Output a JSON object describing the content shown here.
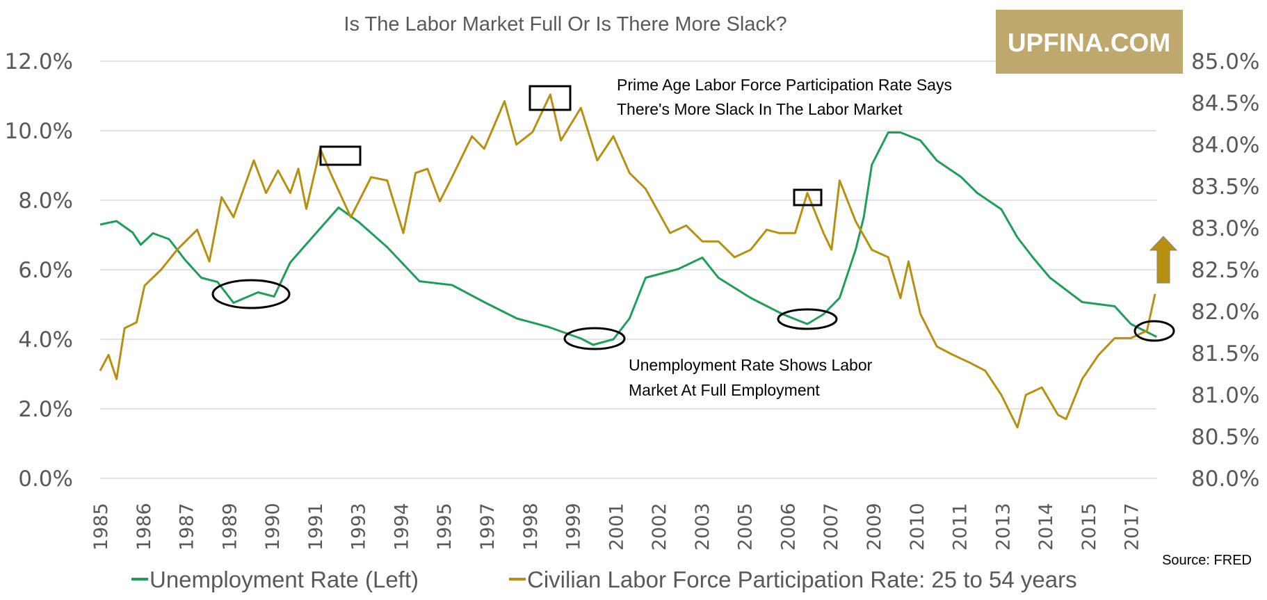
{
  "title": "Is The Labor Market Full Or Is There More Slack?",
  "logo": "UPFINA.COM",
  "source": "Source: FRED",
  "colors": {
    "unemployment": "#1f9e58",
    "participation": "#b8900f",
    "logo_bg": "#bfa86e",
    "grid": "#d9d9d9",
    "arrow": "#b8900f"
  },
  "annotations": {
    "participation_line1": "Prime Age Labor Force Participation Rate Says",
    "participation_line2": "There's More Slack In The Labor Market",
    "unemployment_line1": "Unemployment Rate Shows Labor",
    "unemployment_line2": "Market At Full Employment",
    "arrow_icon": "up-arrow"
  },
  "chart_data": {
    "type": "line",
    "title": "Is The Labor Market Full Or Is There More Slack?",
    "xlabel": "",
    "ylabel": "",
    "y2label": "",
    "x_tick_labels": [
      "1985",
      "1986",
      "1987",
      "1989",
      "1990",
      "1991",
      "1993",
      "1994",
      "1995",
      "1997",
      "1998",
      "1999",
      "2001",
      "2002",
      "2003",
      "2005",
      "2006",
      "2007",
      "2009",
      "2010",
      "2011",
      "2013",
      "2014",
      "2015",
      "2017"
    ],
    "xlim": [
      1985.0,
      2018.0
    ],
    "ylim": [
      0,
      12
    ],
    "y_ticks": [
      "0.0%",
      "2.0%",
      "4.0%",
      "6.0%",
      "8.0%",
      "10.0%",
      "12.0%"
    ],
    "y2lim": [
      80,
      85
    ],
    "y2_ticks": [
      "80.0%",
      "80.5%",
      "81.0%",
      "81.5%",
      "82.0%",
      "82.5%",
      "83.0%",
      "83.5%",
      "84.0%",
      "84.5%",
      "85.0%"
    ],
    "grid": true,
    "legend_placement": "bottom",
    "series": [
      {
        "name": "Unemployment Rate (Left)",
        "axis": "left",
        "points": [
          [
            1985.0,
            7.3
          ],
          [
            1985.51,
            7.4
          ],
          [
            1986.01,
            7.07
          ],
          [
            1986.26,
            6.72
          ],
          [
            1986.64,
            7.05
          ],
          [
            1987.14,
            6.88
          ],
          [
            1987.64,
            6.28
          ],
          [
            1988.14,
            5.77
          ],
          [
            1988.64,
            5.65
          ],
          [
            1989.14,
            5.05
          ],
          [
            1989.9,
            5.35
          ],
          [
            1990.4,
            5.23
          ],
          [
            1990.9,
            6.21
          ],
          [
            1991.65,
            7.0
          ],
          [
            1992.4,
            7.79
          ],
          [
            1993.03,
            7.37
          ],
          [
            1993.91,
            6.65
          ],
          [
            1994.91,
            5.67
          ],
          [
            1995.92,
            5.56
          ],
          [
            1996.92,
            5.07
          ],
          [
            1997.93,
            4.6
          ],
          [
            1998.93,
            4.35
          ],
          [
            1999.93,
            4.02
          ],
          [
            2000.3,
            3.84
          ],
          [
            2000.93,
            4.0
          ],
          [
            2001.43,
            4.6
          ],
          [
            2001.93,
            5.77
          ],
          [
            2002.94,
            6.02
          ],
          [
            2003.69,
            6.35
          ],
          [
            2004.19,
            5.77
          ],
          [
            2005.19,
            5.19
          ],
          [
            2006.19,
            4.72
          ],
          [
            2006.95,
            4.44
          ],
          [
            2007.45,
            4.72
          ],
          [
            2007.95,
            5.19
          ],
          [
            2008.45,
            6.58
          ],
          [
            2008.7,
            7.51
          ],
          [
            2008.95,
            9.02
          ],
          [
            2009.46,
            9.95
          ],
          [
            2009.84,
            9.95
          ],
          [
            2010.46,
            9.72
          ],
          [
            2010.97,
            9.14
          ],
          [
            2011.72,
            8.67
          ],
          [
            2012.22,
            8.21
          ],
          [
            2012.97,
            7.74
          ],
          [
            2013.47,
            6.93
          ],
          [
            2013.97,
            6.33
          ],
          [
            2014.48,
            5.77
          ],
          [
            2015.48,
            5.07
          ],
          [
            2016.49,
            4.95
          ],
          [
            2016.99,
            4.44
          ],
          [
            2017.79,
            4.07
          ]
        ]
      },
      {
        "name": "Civilian Labor Force Participation Rate: 25 to 54 years",
        "axis": "right",
        "points": [
          [
            1985.0,
            81.29
          ],
          [
            1985.26,
            81.48
          ],
          [
            1985.51,
            81.19
          ],
          [
            1985.76,
            81.8
          ],
          [
            1986.13,
            81.87
          ],
          [
            1986.38,
            82.31
          ],
          [
            1986.89,
            82.5
          ],
          [
            1987.39,
            82.74
          ],
          [
            1988.01,
            82.98
          ],
          [
            1988.39,
            82.6
          ],
          [
            1988.77,
            83.37
          ],
          [
            1989.14,
            83.13
          ],
          [
            1989.77,
            83.81
          ],
          [
            1990.15,
            83.42
          ],
          [
            1990.52,
            83.69
          ],
          [
            1990.9,
            83.42
          ],
          [
            1991.15,
            83.71
          ],
          [
            1991.4,
            83.23
          ],
          [
            1991.83,
            83.95
          ],
          [
            1992.15,
            83.66
          ],
          [
            1992.78,
            83.13
          ],
          [
            1993.41,
            83.61
          ],
          [
            1993.91,
            83.57
          ],
          [
            1994.41,
            82.94
          ],
          [
            1994.79,
            83.66
          ],
          [
            1995.16,
            83.71
          ],
          [
            1995.54,
            83.32
          ],
          [
            1995.92,
            83.61
          ],
          [
            1996.54,
            84.1
          ],
          [
            1996.92,
            83.95
          ],
          [
            1997.55,
            84.52
          ],
          [
            1997.92,
            84.0
          ],
          [
            1998.42,
            84.15
          ],
          [
            1998.97,
            84.6
          ],
          [
            1999.3,
            84.05
          ],
          [
            1999.92,
            84.44
          ],
          [
            2000.43,
            83.81
          ],
          [
            2000.93,
            84.1
          ],
          [
            2001.43,
            83.66
          ],
          [
            2001.93,
            83.47
          ],
          [
            2002.69,
            82.94
          ],
          [
            2003.19,
            83.03
          ],
          [
            2003.69,
            82.84
          ],
          [
            2004.19,
            82.84
          ],
          [
            2004.69,
            82.65
          ],
          [
            2005.19,
            82.74
          ],
          [
            2005.69,
            82.98
          ],
          [
            2006.07,
            82.94
          ],
          [
            2006.57,
            82.94
          ],
          [
            2006.95,
            83.42
          ],
          [
            2007.45,
            82.94
          ],
          [
            2007.7,
            82.74
          ],
          [
            2007.95,
            83.57
          ],
          [
            2008.45,
            83.08
          ],
          [
            2008.95,
            82.74
          ],
          [
            2009.46,
            82.65
          ],
          [
            2009.84,
            82.16
          ],
          [
            2010.09,
            82.6
          ],
          [
            2010.46,
            81.97
          ],
          [
            2010.97,
            81.58
          ],
          [
            2011.47,
            81.48
          ],
          [
            2011.97,
            81.39
          ],
          [
            2012.47,
            81.29
          ],
          [
            2012.97,
            81.0
          ],
          [
            2013.47,
            80.61
          ],
          [
            2013.73,
            81.0
          ],
          [
            2014.23,
            81.09
          ],
          [
            2014.73,
            80.76
          ],
          [
            2014.98,
            80.71
          ],
          [
            2015.48,
            81.19
          ],
          [
            2015.99,
            81.48
          ],
          [
            2016.49,
            81.68
          ],
          [
            2016.99,
            81.68
          ],
          [
            2017.49,
            81.77
          ],
          [
            2017.74,
            82.21
          ]
        ]
      }
    ]
  }
}
